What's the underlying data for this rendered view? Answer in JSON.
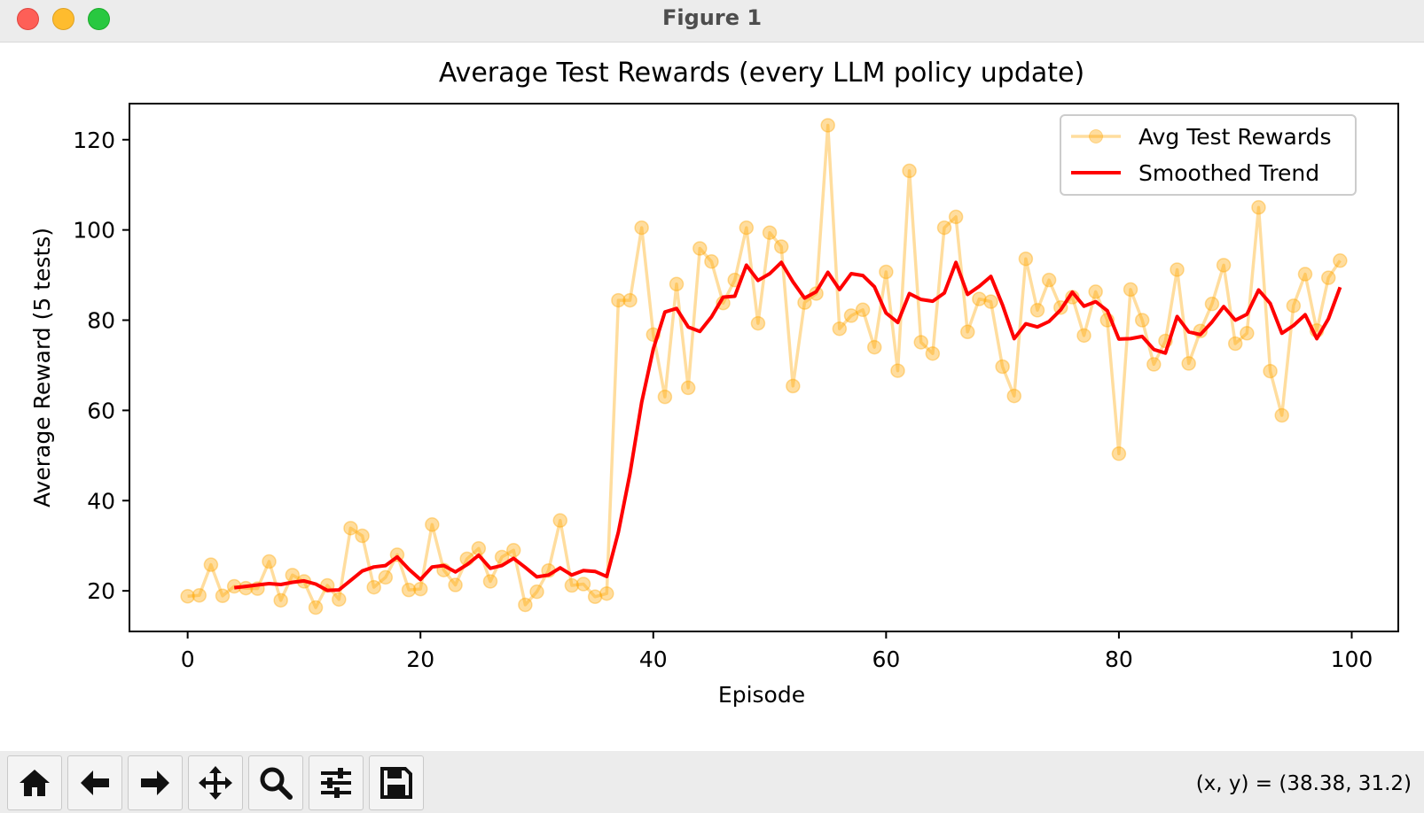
{
  "window": {
    "title": "Figure 1"
  },
  "toolbar": {
    "buttons": [
      {
        "name": "home-button",
        "icon": "home-icon"
      },
      {
        "name": "back-button",
        "icon": "arrow-left-icon"
      },
      {
        "name": "forward-button",
        "icon": "arrow-right-icon"
      },
      {
        "name": "pan-button",
        "icon": "move-icon"
      },
      {
        "name": "zoom-button",
        "icon": "magnifier-icon"
      },
      {
        "name": "configure-subplots-button",
        "icon": "sliders-icon"
      },
      {
        "name": "save-button",
        "icon": "floppy-disk-icon"
      }
    ],
    "coords": "(x, y) = (38.38, 31.2)"
  },
  "chart_data": {
    "type": "line",
    "title": "Average Test Rewards (every LLM policy update)",
    "xlabel": "Episode",
    "ylabel": "Average Reward (5 tests)",
    "xlim": [
      -5,
      104
    ],
    "ylim": [
      11,
      128
    ],
    "xticks": [
      0,
      20,
      40,
      60,
      80,
      100
    ],
    "yticks": [
      20,
      40,
      60,
      80,
      100,
      120
    ],
    "grid": false,
    "legend_position": "top-right",
    "series": [
      {
        "name": "Avg Test Rewards",
        "color": "#ffa500",
        "marker": "circle",
        "x": [
          0,
          1,
          2,
          3,
          4,
          5,
          6,
          7,
          8,
          9,
          10,
          11,
          12,
          13,
          14,
          15,
          16,
          17,
          18,
          19,
          20,
          21,
          22,
          23,
          24,
          25,
          26,
          27,
          28,
          29,
          30,
          31,
          32,
          33,
          34,
          35,
          36,
          37,
          38,
          39,
          40,
          41,
          42,
          43,
          44,
          45,
          46,
          47,
          48,
          49,
          50,
          51,
          52,
          53,
          54,
          55,
          56,
          57,
          58,
          59,
          60,
          61,
          62,
          63,
          64,
          65,
          66,
          67,
          68,
          69,
          70,
          71,
          72,
          73,
          74,
          75,
          76,
          77,
          78,
          79,
          80,
          81,
          82,
          83,
          84,
          85,
          86,
          87,
          88,
          89,
          90,
          91,
          92,
          93,
          94,
          95,
          96,
          97,
          98,
          99
        ],
        "values": [
          18.8,
          19.0,
          25.8,
          18.9,
          21.0,
          20.6,
          20.5,
          26.5,
          17.9,
          23.5,
          22.1,
          16.3,
          21.2,
          18.1,
          33.9,
          32.2,
          20.8,
          23.0,
          28.0,
          20.2,
          20.4,
          34.7,
          24.6,
          21.3,
          27.1,
          29.4,
          22.1,
          27.5,
          29.0,
          16.9,
          19.8,
          24.5,
          35.6,
          21.2,
          21.5,
          18.7,
          19.4,
          84.4,
          84.4,
          100.5,
          76.8,
          63.0,
          88.0,
          65.0,
          95.9,
          93.0,
          83.8,
          88.9,
          100.5,
          79.3,
          99.4,
          96.3,
          65.4,
          83.9,
          85.9,
          123.2,
          78.1,
          81.0,
          82.3,
          74.0,
          90.7,
          68.8,
          113.1,
          75.1,
          72.6,
          100.5,
          102.9,
          77.4,
          84.7,
          84.1,
          69.7,
          63.2,
          93.6,
          82.2,
          88.9,
          82.8,
          85.1,
          76.6,
          86.3,
          80.0,
          50.4,
          86.8,
          80.0,
          70.2,
          75.4,
          91.2,
          70.4,
          77.6,
          83.6,
          92.2,
          74.8,
          77.1,
          105.0,
          68.7,
          58.9,
          83.2,
          90.2,
          77.7,
          89.4,
          93.2
        ]
      },
      {
        "name": "Smoothed Trend",
        "color": "#ff0000",
        "marker": "none",
        "x": [
          4,
          5,
          6,
          7,
          8,
          9,
          10,
          11,
          12,
          13,
          14,
          15,
          16,
          17,
          18,
          19,
          20,
          21,
          22,
          23,
          24,
          25,
          26,
          27,
          28,
          29,
          30,
          31,
          32,
          33,
          34,
          35,
          36,
          37,
          38,
          39,
          40,
          41,
          42,
          43,
          44,
          45,
          46,
          47,
          48,
          49,
          50,
          51,
          52,
          53,
          54,
          55,
          56,
          57,
          58,
          59,
          60,
          61,
          62,
          63,
          64,
          65,
          66,
          67,
          68,
          69,
          70,
          71,
          72,
          73,
          74,
          75,
          76,
          77,
          78,
          79,
          80,
          81,
          82,
          83,
          84,
          85,
          86,
          87,
          88,
          89,
          90,
          91,
          92,
          93,
          94,
          95,
          96,
          97,
          98,
          99
        ],
        "values": [
          20.7,
          21.0,
          21.3,
          21.6,
          21.4,
          21.9,
          22.2,
          21.5,
          20.1,
          20.2,
          22.3,
          24.4,
          25.3,
          25.6,
          27.5,
          24.8,
          22.5,
          25.3,
          25.6,
          24.2,
          25.8,
          27.9,
          25.0,
          25.6,
          27.2,
          25.2,
          23.1,
          23.5,
          25.1,
          23.5,
          24.5,
          24.3,
          23.2,
          33.0,
          46.0,
          61.8,
          73.6,
          81.8,
          82.6,
          78.5,
          77.5,
          80.7,
          85.1,
          85.3,
          92.2,
          88.8,
          90.3,
          92.8,
          88.5,
          84.9,
          86.3,
          90.6,
          86.8,
          90.3,
          89.9,
          87.4,
          81.6,
          79.5,
          85.9,
          84.6,
          84.2,
          86.0,
          92.8,
          85.7,
          87.5,
          89.7,
          83.4,
          75.9,
          79.2,
          78.5,
          79.7,
          82.3,
          86.2,
          83.1,
          84.1,
          82.1,
          75.8,
          75.9,
          76.4,
          73.5,
          72.7,
          80.8,
          77.4,
          76.8,
          79.6,
          83.0,
          80.0,
          81.3,
          86.7,
          83.7,
          77.1,
          78.8,
          81.2,
          75.9,
          80.3,
          87.3
        ]
      }
    ]
  }
}
